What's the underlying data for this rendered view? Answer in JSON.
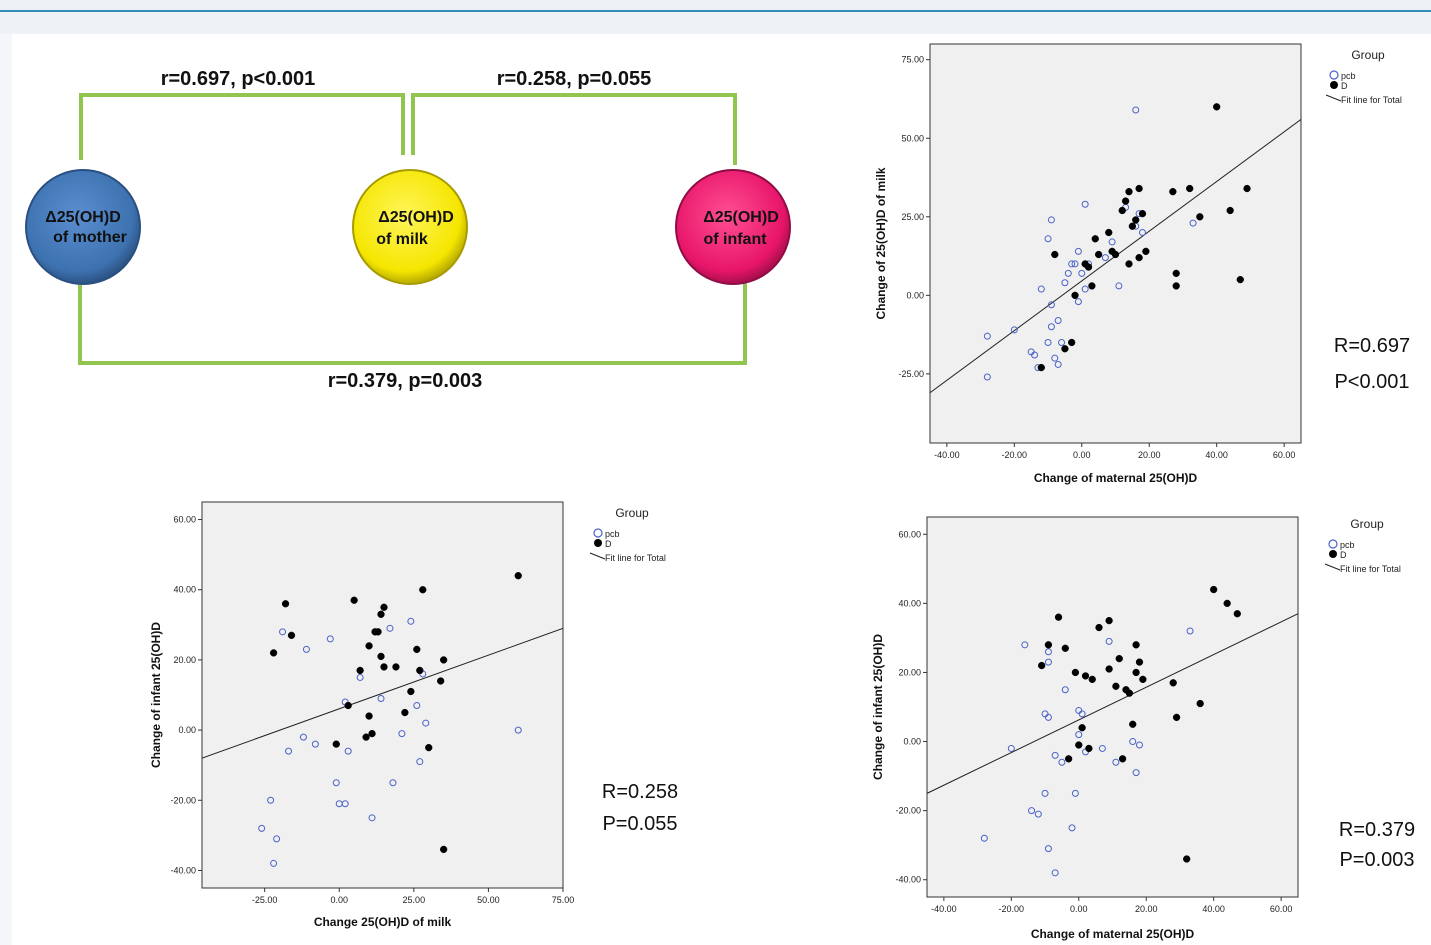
{
  "diagram": {
    "nodes": [
      {
        "label_line1": "Δ25(OH)D",
        "label_line2": "of  mother",
        "color": "#3d72b0"
      },
      {
        "label_line1": "Δ25(OH)D",
        "label_line2": "of milk",
        "color": "#f5e600"
      },
      {
        "label_line1": "Δ25(OH)D",
        "label_line2": "of infant",
        "color": "#e8156a"
      }
    ],
    "links": [
      {
        "label": "r=0.697, p<0.001"
      },
      {
        "label": "r=0.258, p=0.055"
      },
      {
        "label": "r=0.379, p=0.003"
      }
    ],
    "bracket_color": "#92c550"
  },
  "chart_data": [
    {
      "type": "scatter",
      "id": "milk-vs-maternal",
      "xlabel": "Change of maternal 25(OH)D",
      "ylabel": "Change of  25(OH)D of milk",
      "xlim": [
        -45,
        65
      ],
      "ylim": [
        -47,
        80
      ],
      "xticks": [
        -40,
        -20,
        0,
        20,
        40,
        60
      ],
      "xtick_labels": [
        "-40.00",
        "-20.00",
        "0.00",
        "20.00",
        "40.00",
        "60.00"
      ],
      "yticks": [
        -25,
        0,
        25,
        50,
        75
      ],
      "ytick_labels": [
        "-25.00",
        "0.00",
        "25.00",
        "50.00",
        "75.00"
      ],
      "legend": {
        "title": "Group",
        "entries": [
          "pcb",
          "D",
          "Fit line for Total"
        ],
        "placement": "outside-right"
      },
      "stat_lines": [
        "R=0.697",
        "P<0.001"
      ],
      "fit_line": [
        [
          -45,
          -31
        ],
        [
          65,
          56
        ]
      ],
      "series": [
        {
          "name": "pcb",
          "marker": "open-circle",
          "color": "#4a62c8",
          "points": [
            [
              -28,
              -13
            ],
            [
              -28,
              -26
            ],
            [
              -20,
              -11
            ],
            [
              -12,
              2
            ],
            [
              -14,
              -19
            ],
            [
              -13,
              -23
            ],
            [
              -15,
              -18
            ],
            [
              -10,
              -15
            ],
            [
              -10,
              18
            ],
            [
              -9,
              24
            ],
            [
              -9,
              -3
            ],
            [
              -9,
              -10
            ],
            [
              -8,
              -20
            ],
            [
              -7,
              -22
            ],
            [
              -7,
              -8
            ],
            [
              -6,
              -15
            ],
            [
              -5,
              4
            ],
            [
              -4,
              7
            ],
            [
              -3,
              10
            ],
            [
              -2,
              10
            ],
            [
              -1,
              14
            ],
            [
              -1,
              -2
            ],
            [
              0,
              7
            ],
            [
              1,
              29
            ],
            [
              1,
              2
            ],
            [
              2,
              10
            ],
            [
              7,
              12
            ],
            [
              9,
              17
            ],
            [
              11,
              3
            ],
            [
              13,
              28
            ],
            [
              16,
              59
            ],
            [
              16,
              22
            ],
            [
              17,
              26
            ],
            [
              18,
              20
            ],
            [
              33,
              23
            ]
          ]
        },
        {
          "name": "D",
          "marker": "filled-circle",
          "color": "#000000",
          "points": [
            [
              -12,
              -23
            ],
            [
              -8,
              13
            ],
            [
              -5,
              -17
            ],
            [
              -3,
              -15
            ],
            [
              -2,
              0
            ],
            [
              1,
              10
            ],
            [
              2,
              9
            ],
            [
              3,
              3
            ],
            [
              4,
              18
            ],
            [
              5,
              13
            ],
            [
              8,
              20
            ],
            [
              9,
              14
            ],
            [
              10,
              13
            ],
            [
              12,
              27
            ],
            [
              13,
              30
            ],
            [
              14,
              10
            ],
            [
              14,
              33
            ],
            [
              15,
              22
            ],
            [
              16,
              24
            ],
            [
              17,
              34
            ],
            [
              17,
              12
            ],
            [
              18,
              26
            ],
            [
              19,
              14
            ],
            [
              27,
              33
            ],
            [
              28,
              7
            ],
            [
              28,
              3
            ],
            [
              32,
              34
            ],
            [
              35,
              25
            ],
            [
              40,
              60
            ],
            [
              44,
              27
            ],
            [
              47,
              5
            ],
            [
              49,
              34
            ]
          ]
        }
      ]
    },
    {
      "type": "scatter",
      "id": "infant-vs-milk",
      "xlabel": "Change 25(OH)D of milk",
      "ylabel": "Change of infant 25(OH)D",
      "xlim": [
        -46,
        75
      ],
      "ylim": [
        -45,
        65
      ],
      "xticks": [
        -25,
        0,
        25,
        50,
        75
      ],
      "xtick_labels": [
        "-25.00",
        "0.00",
        "25.00",
        "50.00",
        "75.00"
      ],
      "yticks": [
        -40,
        -20,
        0,
        20,
        40,
        60
      ],
      "ytick_labels": [
        "-40.00",
        "-20.00",
        "0.00",
        "20.00",
        "40.00",
        "60.00"
      ],
      "legend": {
        "title": "Group",
        "entries": [
          "pcb",
          "D",
          "Fit line for Total"
        ],
        "placement": "outside-right"
      },
      "stat_lines": [
        "R=0.258",
        "P=0.055"
      ],
      "fit_line": [
        [
          -46,
          -8
        ],
        [
          75,
          29
        ]
      ],
      "series": [
        {
          "name": "pcb",
          "marker": "open-circle",
          "color": "#4a62c8",
          "points": [
            [
              -26,
              -28
            ],
            [
              -23,
              -20
            ],
            [
              -21,
              -31
            ],
            [
              -22,
              -38
            ],
            [
              -17,
              -6
            ],
            [
              -19,
              28
            ],
            [
              -12,
              -2
            ],
            [
              -11,
              23
            ],
            [
              -8,
              -4
            ],
            [
              -3,
              26
            ],
            [
              -1,
              -15
            ],
            [
              0,
              -21
            ],
            [
              2,
              8
            ],
            [
              3,
              -6
            ],
            [
              2,
              -21
            ],
            [
              7,
              15
            ],
            [
              11,
              -25
            ],
            [
              14,
              9
            ],
            [
              17,
              29
            ],
            [
              18,
              -15
            ],
            [
              21,
              -1
            ],
            [
              24,
              31
            ],
            [
              26,
              7
            ],
            [
              27,
              -9
            ],
            [
              28,
              16
            ],
            [
              29,
              2
            ],
            [
              60,
              0
            ]
          ]
        },
        {
          "name": "D",
          "marker": "filled-circle",
          "color": "#000000",
          "points": [
            [
              -22,
              22
            ],
            [
              -18,
              36
            ],
            [
              -16,
              27
            ],
            [
              -1,
              -4
            ],
            [
              3,
              7
            ],
            [
              5,
              37
            ],
            [
              7,
              17
            ],
            [
              9,
              -2
            ],
            [
              10,
              4
            ],
            [
              10,
              24
            ],
            [
              11,
              -1
            ],
            [
              12,
              28
            ],
            [
              13,
              28
            ],
            [
              14,
              33
            ],
            [
              15,
              35
            ],
            [
              14,
              21
            ],
            [
              15,
              18
            ],
            [
              19,
              18
            ],
            [
              22,
              5
            ],
            [
              24,
              11
            ],
            [
              26,
              23
            ],
            [
              27,
              17
            ],
            [
              28,
              40
            ],
            [
              30,
              -5
            ],
            [
              34,
              14
            ],
            [
              35,
              20
            ],
            [
              35,
              -34
            ],
            [
              60,
              44
            ]
          ]
        }
      ]
    },
    {
      "type": "scatter",
      "id": "infant-vs-maternal",
      "xlabel": "Change of maternal 25(OH)D",
      "ylabel": "Change of infant 25(OH)D",
      "xlim": [
        -45,
        65
      ],
      "ylim": [
        -45,
        65
      ],
      "xticks": [
        -40,
        -20,
        0,
        20,
        40,
        60
      ],
      "xtick_labels": [
        "-40.00",
        "-20.00",
        "0.00",
        "20.00",
        "40.00",
        "60.00"
      ],
      "yticks": [
        -40,
        -20,
        0,
        20,
        40,
        60
      ],
      "ytick_labels": [
        "-40.00",
        "-20.00",
        "0.00",
        "20.00",
        "40.00",
        "60.00"
      ],
      "legend": {
        "title": "Group",
        "entries": [
          "pcb",
          "D",
          "Fit line for Total"
        ],
        "placement": "outside-right"
      },
      "stat_lines": [
        "R=0.379",
        "P=0.003"
      ],
      "fit_line": [
        [
          -45,
          -15
        ],
        [
          65,
          37
        ]
      ],
      "series": [
        {
          "name": "pcb",
          "marker": "open-circle",
          "color": "#4a62c8",
          "points": [
            [
              -28,
              -28
            ],
            [
              -20,
              -2
            ],
            [
              -16,
              28
            ],
            [
              -14,
              -20
            ],
            [
              -12,
              -21
            ],
            [
              -10,
              8
            ],
            [
              -10,
              -15
            ],
            [
              -9,
              7
            ],
            [
              -9,
              23
            ],
            [
              -9,
              26
            ],
            [
              -9,
              -31
            ],
            [
              -7,
              -4
            ],
            [
              -7,
              -38
            ],
            [
              -5,
              -6
            ],
            [
              -4,
              15
            ],
            [
              -2,
              -25
            ],
            [
              -1,
              -15
            ],
            [
              0,
              9
            ],
            [
              0,
              2
            ],
            [
              1,
              8
            ],
            [
              2,
              -3
            ],
            [
              7,
              -2
            ],
            [
              9,
              29
            ],
            [
              11,
              -6
            ],
            [
              16,
              0
            ],
            [
              17,
              -9
            ],
            [
              18,
              -1
            ],
            [
              33,
              32
            ]
          ]
        },
        {
          "name": "D",
          "marker": "filled-circle",
          "color": "#000000",
          "points": [
            [
              -11,
              22
            ],
            [
              -9,
              28
            ],
            [
              -6,
              36
            ],
            [
              -4,
              27
            ],
            [
              -3,
              -5
            ],
            [
              -1,
              20
            ],
            [
              0,
              -1
            ],
            [
              1,
              4
            ],
            [
              2,
              19
            ],
            [
              3,
              -2
            ],
            [
              4,
              18
            ],
            [
              6,
              33
            ],
            [
              9,
              21
            ],
            [
              9,
              35
            ],
            [
              11,
              16
            ],
            [
              12,
              24
            ],
            [
              13,
              -5
            ],
            [
              14,
              15
            ],
            [
              15,
              14
            ],
            [
              16,
              5
            ],
            [
              17,
              28
            ],
            [
              17,
              20
            ],
            [
              18,
              23
            ],
            [
              19,
              18
            ],
            [
              28,
              17
            ],
            [
              29,
              7
            ],
            [
              32,
              -34
            ],
            [
              36,
              11
            ],
            [
              40,
              44
            ],
            [
              44,
              40
            ],
            [
              47,
              37
            ]
          ]
        }
      ]
    }
  ]
}
